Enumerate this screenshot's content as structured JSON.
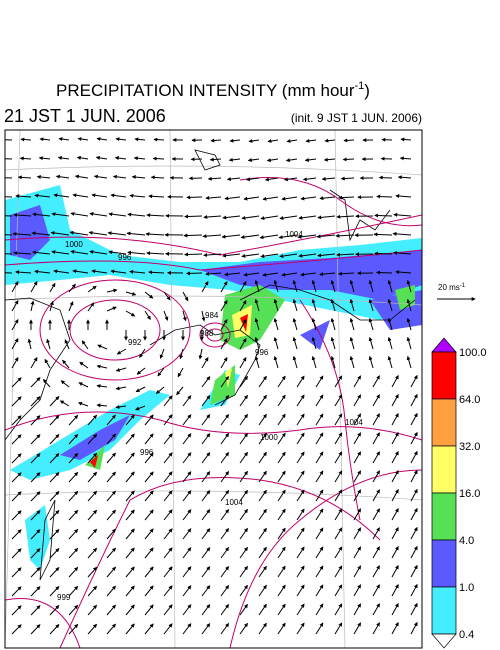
{
  "header": {
    "title": {
      "text": "PRECIPITATION INTENSITY (mm hour",
      "superscript": "-1",
      "suffix": ")"
    },
    "valid_time": "21 JST 1 JUN. 2006",
    "init_time": "(init. 9 JST 1 JUN. 2006)"
  },
  "reference_vector": {
    "text": "20 ms",
    "superscript": "-1"
  },
  "contour_labels": [
    "1000",
    "996",
    "1004",
    "988",
    "992",
    "996",
    "1004",
    "1000",
    "996",
    "999",
    "1004",
    "984"
  ],
  "colorbar": {
    "labels": [
      "100.0",
      "64.0",
      "32.0",
      "16.0",
      "4.0",
      "1.0",
      "0.4"
    ],
    "colors": [
      "#ff0000",
      "#ffa040",
      "#ffff66",
      "#55e055",
      "#5a5aff",
      "#44eeff"
    ],
    "over_color": "#b000ff",
    "under_color": "#ffffff"
  }
}
